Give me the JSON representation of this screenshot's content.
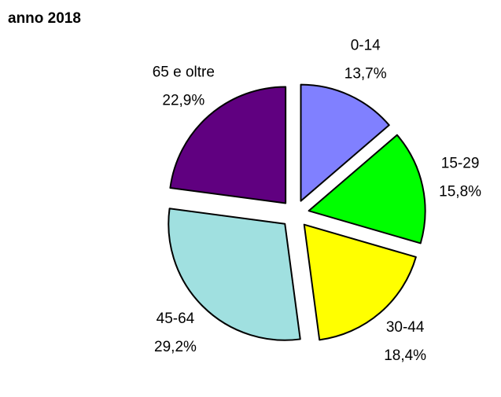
{
  "chart_data": {
    "type": "pie",
    "title": "anno 2018",
    "categories": [
      "0-14",
      "15-29",
      "30-44",
      "45-64",
      "65 e oltre"
    ],
    "values": [
      13.7,
      15.8,
      18.4,
      29.2,
      22.9
    ],
    "value_labels": [
      "13,7%",
      "15,8%",
      "18,4%",
      "29,2%",
      "22,9%"
    ],
    "colors": [
      "#8080ff",
      "#00ff00",
      "#ffff00",
      "#a0e0e0",
      "#600080"
    ]
  }
}
